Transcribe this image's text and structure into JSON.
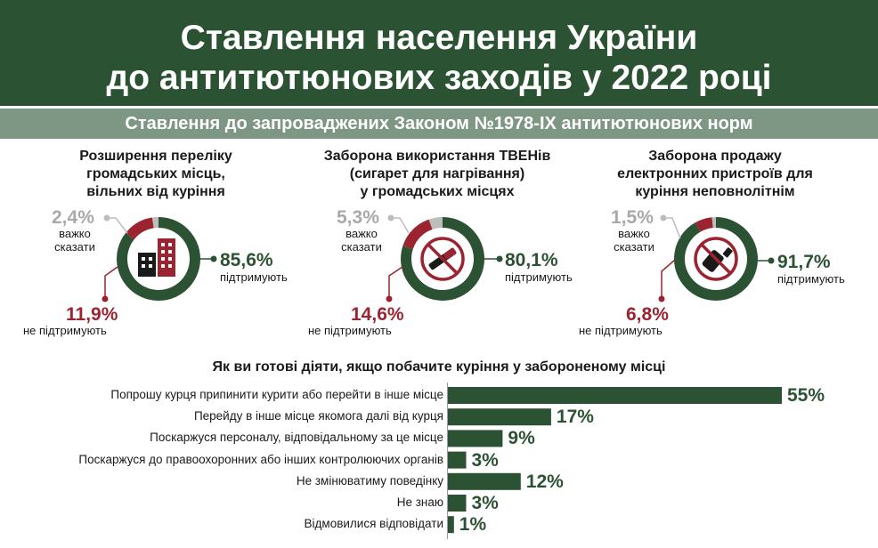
{
  "header": {
    "title_line1": "Ставлення населення України",
    "title_line2": "до антитютюнових заходів у 2022 році",
    "subtitle": "Ставлення до запроваджених Законом №1978-IX антитютюнових норм"
  },
  "panels": [
    {
      "title_lines": [
        "Розширення переліку",
        "громадських місць,",
        "вільних від куріння"
      ],
      "support_pct": "85,6%",
      "support_label": "підтримують",
      "oppose_pct": "11,9%",
      "oppose_label": "не підтримують",
      "unsure_pct": "2,4%",
      "unsure_label_lines": [
        "важко",
        "сказати"
      ],
      "icon": "buildings-icon"
    },
    {
      "title_lines": [
        "Заборона використання ТВЕНів",
        "(сигарет для нагрівання)",
        "у громадських місцях"
      ],
      "support_pct": "80,1%",
      "support_label": "підтримують",
      "oppose_pct": "14,6%",
      "oppose_label": "не підтримують",
      "unsure_pct": "5,3%",
      "unsure_label_lines": [
        "важко",
        "сказати"
      ],
      "icon": "no-heated-cigarette-icon"
    },
    {
      "title_lines": [
        "Заборона продажу",
        "електронних пристроїв для",
        "куріння неповнолітнім"
      ],
      "support_pct": "91,7%",
      "support_label": "підтримують",
      "oppose_pct": "6,8%",
      "oppose_label": "не підтримують",
      "unsure_pct": "1,5%",
      "unsure_label_lines": [
        "важко",
        "сказати"
      ],
      "icon": "no-vape-icon"
    }
  ],
  "bars": {
    "title": "Як ви готові діяти, якщо побачите куріння у забороненому місці"
  },
  "colors": {
    "green": "#2c5234",
    "red": "#9c2330",
    "grey": "#bdbdbd",
    "header": "#2c5234",
    "subheader": "#7e9684"
  },
  "chart_data": [
    {
      "type": "pie",
      "title": "Розширення переліку громадських місць, вільних від куріння",
      "categories": [
        "підтримують",
        "не підтримують",
        "важко сказати"
      ],
      "values": [
        85.6,
        11.9,
        2.4
      ]
    },
    {
      "type": "pie",
      "title": "Заборона використання ТВЕНів (сигарет для нагрівання) у громадських місцях",
      "categories": [
        "підтримують",
        "не підтримують",
        "важко сказати"
      ],
      "values": [
        80.1,
        14.6,
        5.3
      ]
    },
    {
      "type": "pie",
      "title": "Заборона продажу електронних пристроїв для куріння неповнолітнім",
      "categories": [
        "підтримують",
        "не підтримують",
        "важко сказати"
      ],
      "values": [
        91.7,
        6.8,
        1.5
      ]
    },
    {
      "type": "bar",
      "title": "Як ви готові діяти, якщо побачите куріння у забороненому місці",
      "categories": [
        "Попрошу курця припинити курити або перейти в інше місце",
        "Перейду в інше місце якомога далі від курця",
        "Поскаржуся персоналу, відповідальному за це місце",
        "Поскаржуся до правоохоронних або інших контролюючих органів",
        "Не змінюватиму поведінку",
        "Не знаю",
        "Відмовилися відповідати"
      ],
      "values": [
        55,
        17,
        9,
        3,
        12,
        3,
        1
      ],
      "value_labels": [
        "55%",
        "17%",
        "9%",
        "3%",
        "12%",
        "3%",
        "1%"
      ]
    }
  ]
}
